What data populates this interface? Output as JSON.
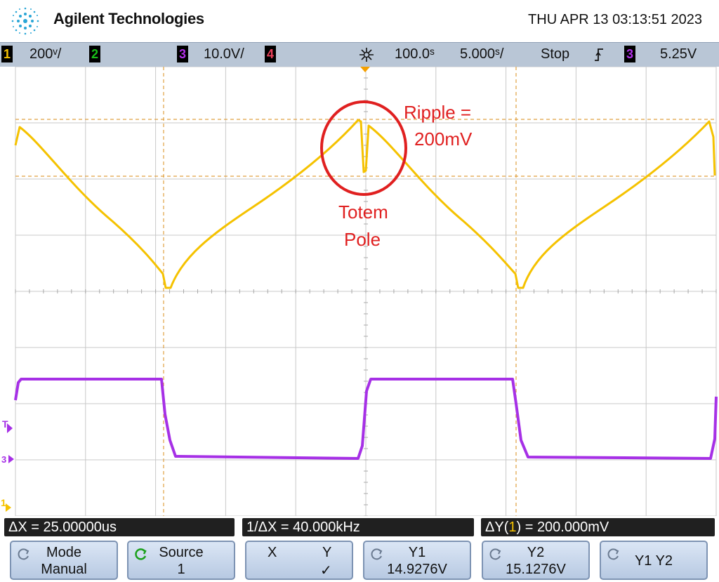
{
  "header": {
    "brand": "Agilent Technologies",
    "datetime": "THU APR 13 03:13:51 2023"
  },
  "status": {
    "ch1_num": "1",
    "ch1_scale": "200ᵛ/",
    "ch2_num": "2",
    "ch3_num": "3",
    "ch3_scale": "10.0V/",
    "ch4_num": "4",
    "h_delay": "100.0ˢ",
    "h_scale": "5.000ˢ/",
    "run_state": "Stop",
    "trig_slope": "⨍",
    "trig_src": "3",
    "trig_level": "5.25V",
    "colors": {
      "ch1": "#f5c200",
      "ch2": "#18c018",
      "ch3": "#b030e8",
      "ch4": "#e8405a"
    }
  },
  "screen_labels": {
    "t_marker": "T",
    "ch3_marker": "3",
    "ch1_marker": "1"
  },
  "annotation": {
    "ripple_line1": "Ripple =",
    "ripple_line2": "200mV",
    "totem_line1": "Totem",
    "totem_line2": "Pole",
    "color": "#e02020"
  },
  "measurements": {
    "delta_x": "ΔX = 25.00000us",
    "inv_delta_x": "1/ΔX = 40.000kHz",
    "delta_y_prefix": "ΔY(",
    "delta_y_ch": "1",
    "delta_y_suffix": ") = 200.000mV"
  },
  "softkeys": {
    "mode_l1": "Mode",
    "mode_l2": "Manual",
    "source_l1": "Source",
    "source_l2": "1",
    "xy_x": "X",
    "xy_y": "Y",
    "xy_check": "✓",
    "y1_l1": "Y1",
    "y1_l2": "14.9276V",
    "y2_l1": "Y2",
    "y2_l2": "15.1276V",
    "y1y2": "Y1 Y2"
  }
}
